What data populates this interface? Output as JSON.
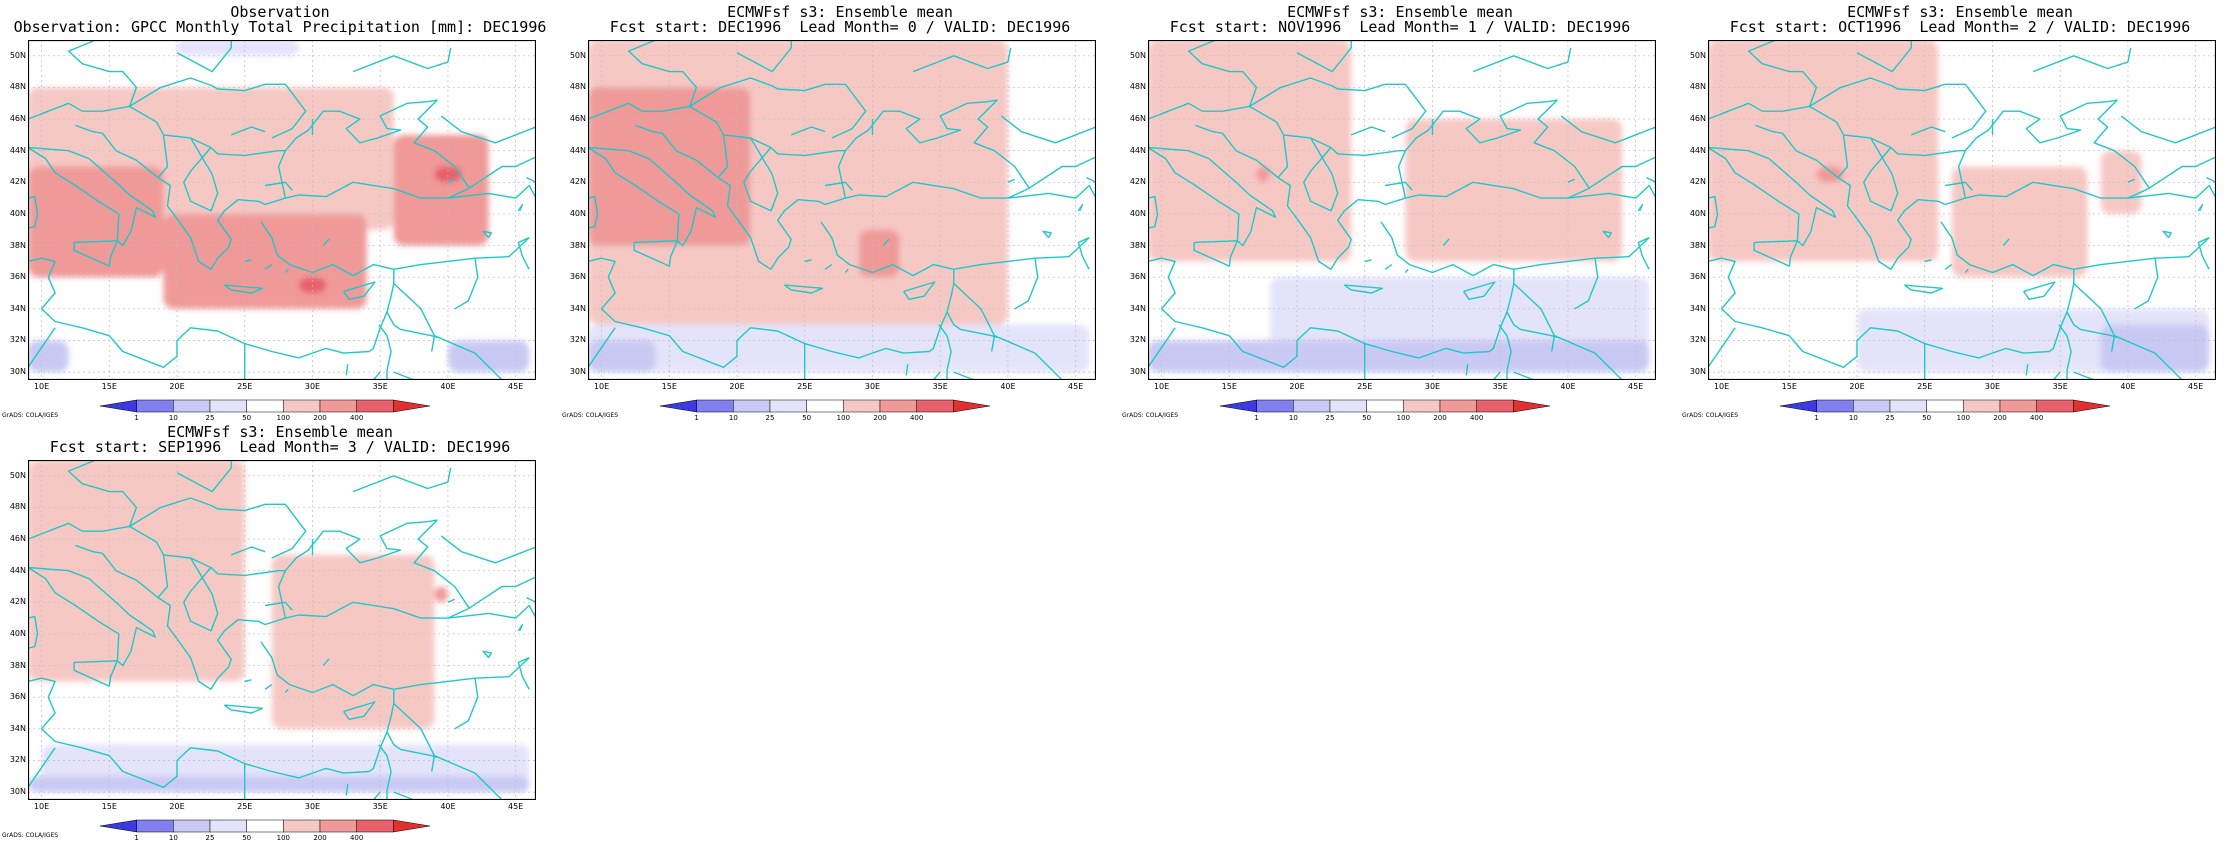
{
  "panels": [
    {
      "title_line1": "Observation",
      "title_line2": "Observation: GPCC Monthly Total Precipitation [mm]: DEC1996",
      "credit": "GrADS: COLA/IGES",
      "anomaly_regions": [
        {
          "lon_range": [
            9,
            36
          ],
          "lat_range": [
            39,
            48
          ],
          "category": "50",
          "color": "#f6c8c4"
        },
        {
          "lon_range": [
            9,
            19
          ],
          "lat_range": [
            36,
            43
          ],
          "category": "100",
          "color": "#ef9a98"
        },
        {
          "lon_range": [
            19,
            34
          ],
          "lat_range": [
            34,
            40
          ],
          "category": "100",
          "color": "#ef9a98"
        },
        {
          "lon_range": [
            36,
            43
          ],
          "lat_range": [
            38,
            45
          ],
          "category": "100",
          "color": "#ef9a98"
        },
        {
          "lon_range": [
            39,
            41
          ],
          "lat_range": [
            42,
            43
          ],
          "category": "200",
          "color": "#e8606c"
        },
        {
          "lon_range": [
            29,
            31
          ],
          "lat_range": [
            35,
            36
          ],
          "category": "200",
          "color": "#e8606c"
        },
        {
          "lon_range": [
            9,
            12
          ],
          "lat_range": [
            30,
            32
          ],
          "category": "-50",
          "color": "#c9c9f4"
        },
        {
          "lon_range": [
            40,
            46
          ],
          "lat_range": [
            30,
            32
          ],
          "category": "-50",
          "color": "#c9c9f4"
        },
        {
          "lon_range": [
            20,
            29
          ],
          "lat_range": [
            50,
            51
          ],
          "category": "-10",
          "color": "#e3e3fa"
        }
      ]
    },
    {
      "title_line1": "ECMWFsf s3: Ensemble mean",
      "title_line2": "Fcst start: DEC1996  Lead Month= 0 / VALID: DEC1996",
      "credit": "GrADS: COLA/IGES",
      "anomaly_regions": [
        {
          "lon_range": [
            9,
            40
          ],
          "lat_range": [
            33,
            51
          ],
          "category": "50",
          "color": "#f6c8c4"
        },
        {
          "lon_range": [
            9,
            21
          ],
          "lat_range": [
            38,
            48
          ],
          "category": "100",
          "color": "#ef9a98"
        },
        {
          "lon_range": [
            29,
            32
          ],
          "lat_range": [
            36,
            39
          ],
          "category": "100",
          "color": "#ef9a98"
        },
        {
          "lon_range": [
            9,
            46
          ],
          "lat_range": [
            30,
            33
          ],
          "category": "-10",
          "color": "#e3e3fa"
        },
        {
          "lon_range": [
            9,
            14
          ],
          "lat_range": [
            30,
            32
          ],
          "category": "-50",
          "color": "#c9c9f4"
        }
      ]
    },
    {
      "title_line1": "ECMWFsf s3: Ensemble mean",
      "title_line2": "Fcst start: NOV1996  Lead Month= 1 / VALID: DEC1996",
      "credit": "GrADS: COLA/IGES",
      "anomaly_regions": [
        {
          "lon_range": [
            9,
            24
          ],
          "lat_range": [
            37,
            51
          ],
          "category": "50",
          "color": "#f6c8c4"
        },
        {
          "lon_range": [
            28,
            44
          ],
          "lat_range": [
            37,
            46
          ],
          "category": "50",
          "color": "#f6c8c4"
        },
        {
          "lon_range": [
            17,
            18
          ],
          "lat_range": [
            42,
            43
          ],
          "category": "100",
          "color": "#ef9a98"
        },
        {
          "lon_range": [
            18,
            46
          ],
          "lat_range": [
            30,
            36
          ],
          "category": "-10",
          "color": "#e3e3fa"
        },
        {
          "lon_range": [
            9,
            46
          ],
          "lat_range": [
            30,
            32
          ],
          "category": "-50",
          "color": "#c9c9f4"
        }
      ]
    },
    {
      "title_line1": "ECMWFsf s3: Ensemble mean",
      "title_line2": "Fcst start: OCT1996  Lead Month= 2 / VALID: DEC1996",
      "credit": "GrADS: COLA/IGES",
      "anomaly_regions": [
        {
          "lon_range": [
            9,
            26
          ],
          "lat_range": [
            37,
            51
          ],
          "category": "50",
          "color": "#f6c8c4"
        },
        {
          "lon_range": [
            27,
            37
          ],
          "lat_range": [
            36,
            43
          ],
          "category": "50",
          "color": "#f6c8c4"
        },
        {
          "lon_range": [
            38,
            41
          ],
          "lat_range": [
            40,
            44
          ],
          "category": "50",
          "color": "#f6c8c4"
        },
        {
          "lon_range": [
            17,
            19
          ],
          "lat_range": [
            42,
            43
          ],
          "category": "100",
          "color": "#ef9a98"
        },
        {
          "lon_range": [
            20,
            46
          ],
          "lat_range": [
            30,
            34
          ],
          "category": "-10",
          "color": "#e3e3fa"
        },
        {
          "lon_range": [
            38,
            46
          ],
          "lat_range": [
            30,
            33
          ],
          "category": "-50",
          "color": "#c9c9f4"
        }
      ]
    },
    {
      "title_line1": "ECMWFsf s3: Ensemble mean",
      "title_line2": "Fcst start: SEP1996  Lead Month= 3 / VALID: DEC1996",
      "credit": "GrADS: COLA/IGES",
      "anomaly_regions": [
        {
          "lon_range": [
            9,
            25
          ],
          "lat_range": [
            37,
            51
          ],
          "category": "50",
          "color": "#f6c8c4"
        },
        {
          "lon_range": [
            27,
            39
          ],
          "lat_range": [
            34,
            45
          ],
          "category": "50",
          "color": "#f6c8c4"
        },
        {
          "lon_range": [
            39,
            40
          ],
          "lat_range": [
            42,
            43
          ],
          "category": "100",
          "color": "#ef9a98"
        },
        {
          "lon_range": [
            10,
            46
          ],
          "lat_range": [
            30,
            33
          ],
          "category": "-10",
          "color": "#e3e3fa"
        },
        {
          "lon_range": [
            9,
            46
          ],
          "lat_range": [
            30,
            31
          ],
          "category": "-50",
          "color": "#c9c9f4"
        }
      ]
    }
  ],
  "map_axes": {
    "lat_labels": [
      "50N",
      "48N",
      "46N",
      "44N",
      "42N",
      "40N",
      "38N",
      "36N",
      "34N",
      "32N",
      "30N"
    ],
    "lat_values": [
      50,
      48,
      46,
      44,
      42,
      40,
      38,
      36,
      34,
      32,
      30
    ],
    "lon_labels": [
      "10E",
      "15E",
      "20E",
      "25E",
      "30E",
      "35E",
      "40E",
      "45E"
    ],
    "lon_values": [
      10,
      15,
      20,
      25,
      30,
      35,
      40,
      45
    ],
    "lon_range": [
      9,
      46.5
    ],
    "lat_range": [
      29.5,
      51
    ]
  },
  "colorbar": {
    "labels": [
      "1",
      "10",
      "25",
      "50",
      "100",
      "200",
      "400"
    ],
    "colors": [
      "#3a3ae0",
      "#8080f0",
      "#c9c9f4",
      "#e3e3fa",
      "#ffffff",
      "#f6c8c4",
      "#ef9a98",
      "#e8606c",
      "#e23030"
    ]
  },
  "colors": {
    "coastline": "#20c8c8",
    "gridline": "#bdbdbd",
    "frame": "#000000"
  }
}
